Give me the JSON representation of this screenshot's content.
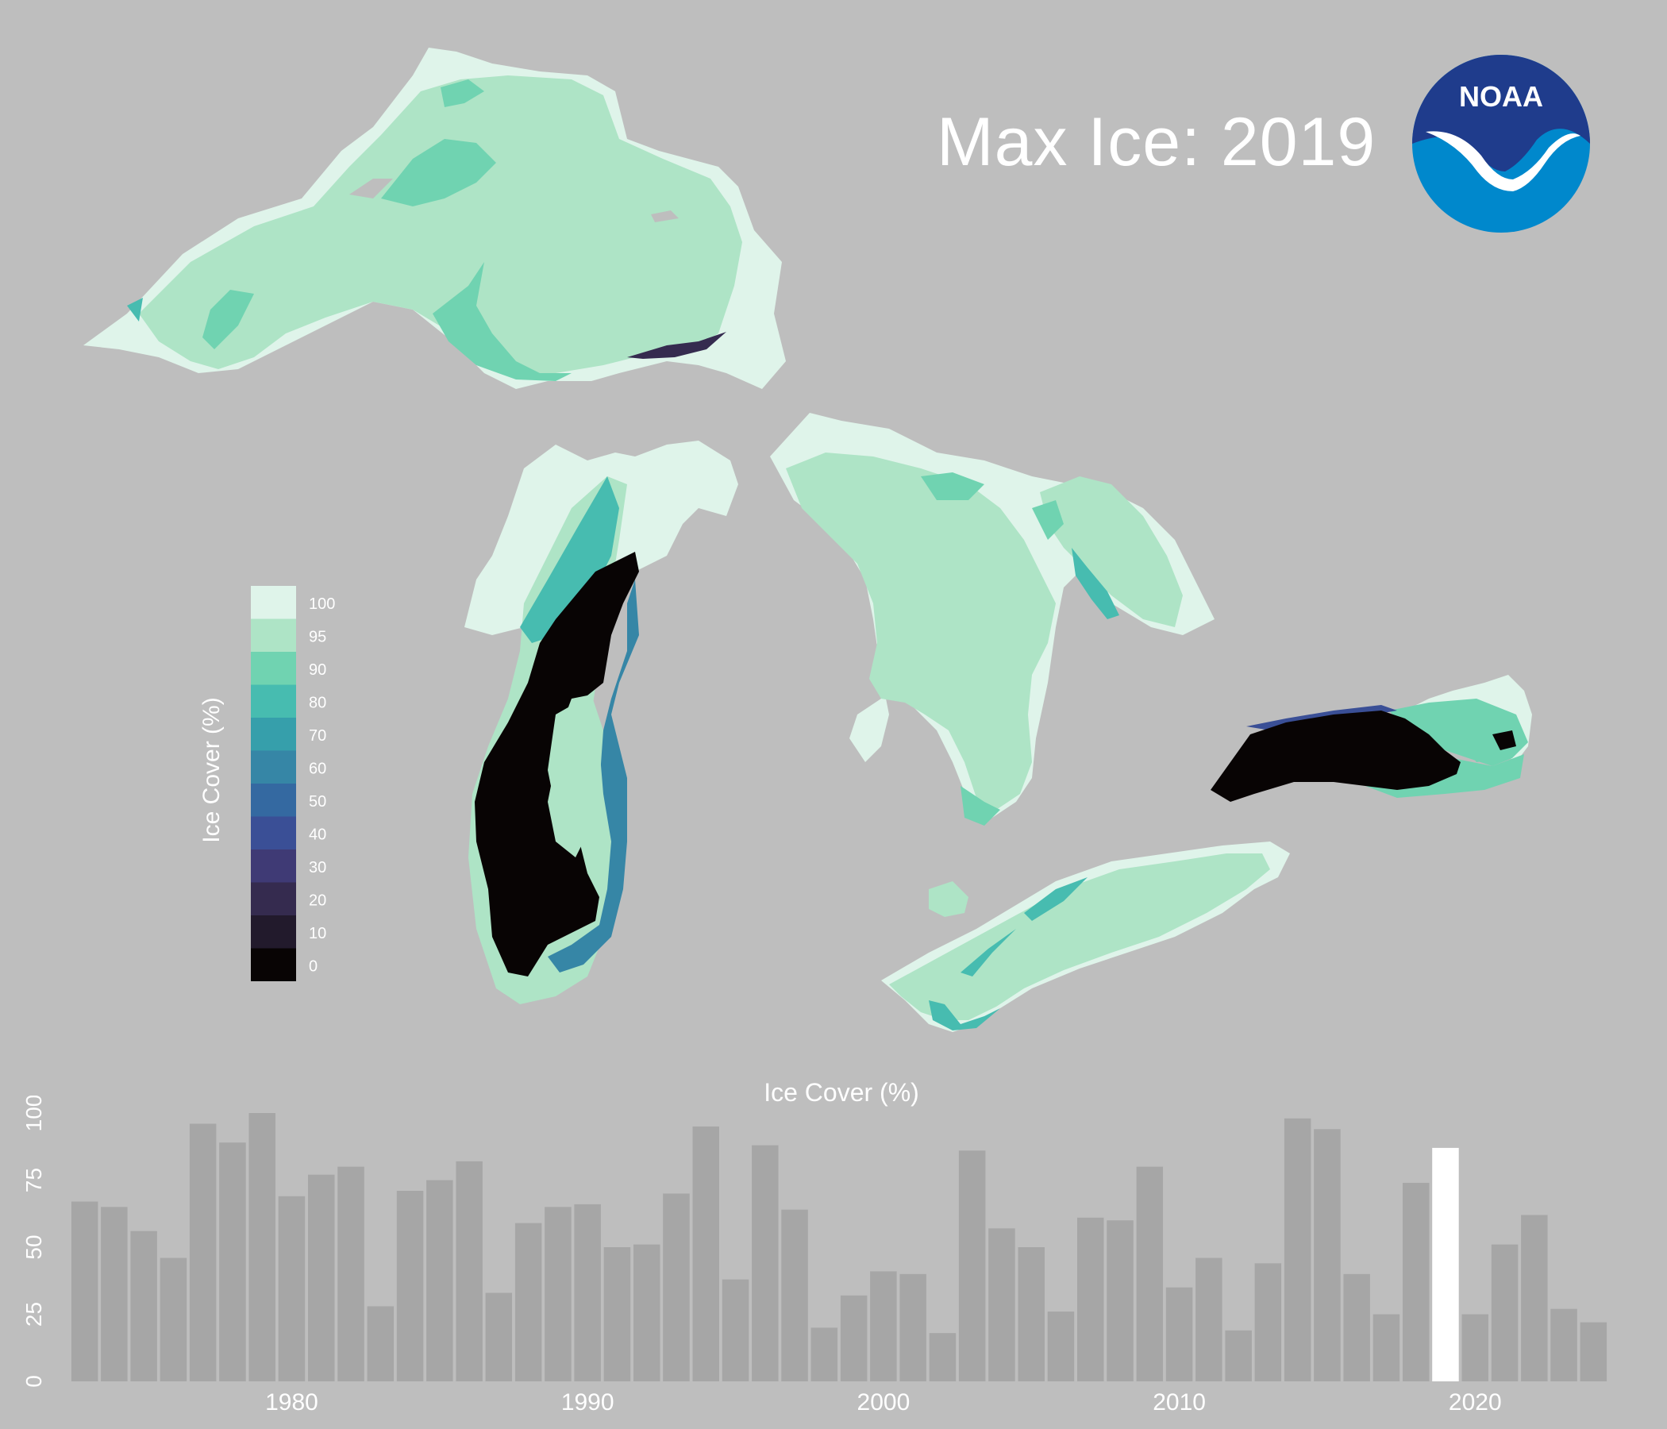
{
  "header": {
    "title": "Max Ice: 2019"
  },
  "logo": {
    "text": "NOAA",
    "colors": {
      "outer": "#0088cc",
      "inner": "#1f3c8c",
      "gull": "#ffffff"
    }
  },
  "legend": {
    "title": "Ice Cover (%)",
    "labels": [
      "100",
      "95",
      "90",
      "80",
      "70",
      "60",
      "50",
      "40",
      "30",
      "20",
      "10",
      "0"
    ],
    "colors": [
      "#dff4ea",
      "#aee4c6",
      "#70d3b1",
      "#47bcb0",
      "#369fab",
      "#3686a6",
      "#3469a1",
      "#3a4f96",
      "#3f3a75",
      "#352b4f",
      "#221a2c",
      "#080404"
    ]
  },
  "map": {
    "lakes": [
      {
        "name": "Superior",
        "cover_class": "95"
      },
      {
        "name": "Michigan",
        "cover_class": "0"
      },
      {
        "name": "Huron",
        "cover_class": "95"
      },
      {
        "name": "Erie",
        "cover_class": "95"
      },
      {
        "name": "Ontario",
        "cover_class": "0"
      }
    ]
  },
  "chart_data": {
    "type": "bar",
    "title": "Ice Cover (%)",
    "xlabel": "",
    "ylabel": "",
    "x": [
      1973,
      1974,
      1975,
      1976,
      1977,
      1978,
      1979,
      1980,
      1981,
      1982,
      1983,
      1984,
      1985,
      1986,
      1987,
      1988,
      1989,
      1990,
      1991,
      1992,
      1993,
      1994,
      1995,
      1996,
      1997,
      1998,
      1999,
      2000,
      2001,
      2002,
      2003,
      2004,
      2005,
      2006,
      2007,
      2008,
      2009,
      2010,
      2011,
      2012,
      2013,
      2014,
      2015,
      2016,
      2017,
      2018,
      2019,
      2020,
      2021,
      2022,
      2023,
      2024
    ],
    "values": [
      67,
      65,
      56,
      46,
      96,
      89,
      100,
      69,
      77,
      80,
      28,
      71,
      75,
      82,
      33,
      59,
      65,
      66,
      50,
      51,
      70,
      95,
      38,
      88,
      64,
      20,
      32,
      41,
      40,
      18,
      86,
      57,
      50,
      26,
      61,
      60,
      80,
      35,
      46,
      19,
      44,
      98,
      94,
      40,
      25,
      74,
      87,
      25,
      51,
      62,
      27,
      22
    ],
    "highlight_x": 2019,
    "ylim": [
      0,
      100
    ],
    "yticks": [
      "0",
      "25",
      "50",
      "75",
      "100"
    ],
    "xticks": [
      "1980",
      "1990",
      "2000",
      "2010",
      "2020"
    ],
    "bar_color": "#a6a6a6",
    "highlight_color": "#ffffff",
    "grid": false
  }
}
